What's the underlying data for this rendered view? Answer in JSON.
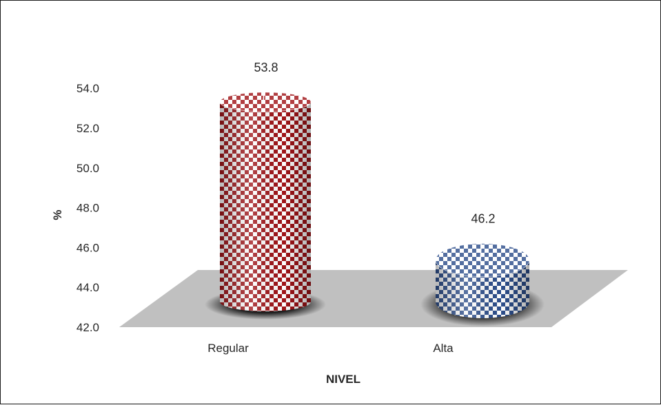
{
  "chart_data": {
    "type": "bar",
    "categories": [
      "Regular",
      "Alta"
    ],
    "values": [
      53.8,
      46.2
    ],
    "data_labels": [
      "53.8",
      "46.2"
    ],
    "xlabel": "NIVEL",
    "ylabel": "%",
    "ylim": [
      42.0,
      55.0
    ],
    "yticks": [
      "42.0",
      "44.0",
      "46.0",
      "48.0",
      "50.0",
      "52.0",
      "54.0"
    ],
    "grid": false,
    "legend": "none",
    "colors": {
      "Regular": "#a01418",
      "Alta": "#2e4f8c",
      "floor": "#c0c0c0"
    }
  }
}
